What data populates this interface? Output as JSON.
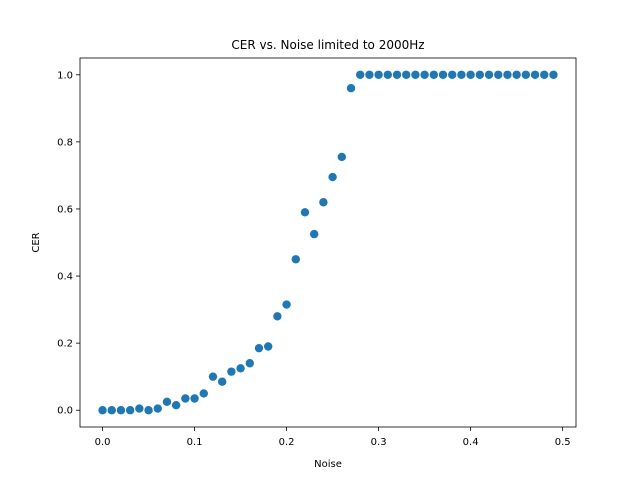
{
  "chart_data": {
    "type": "scatter",
    "title": "CER vs. Noise limited to 2000Hz",
    "xlabel": "Noise",
    "ylabel": "CER",
    "xlim": [
      -0.0245,
      0.5145
    ],
    "ylim": [
      -0.05,
      1.05
    ],
    "xticks": [
      "0.0",
      "0.1",
      "0.2",
      "0.3",
      "0.4",
      "0.5"
    ],
    "yticks": [
      "0.0",
      "0.2",
      "0.4",
      "0.6",
      "0.8",
      "1.0"
    ],
    "grid": false,
    "marker_color": "#1f77b4",
    "series": [
      {
        "x": [
          0.0,
          0.01,
          0.02,
          0.03,
          0.04,
          0.05,
          0.06,
          0.07,
          0.08,
          0.09,
          0.1,
          0.11,
          0.12,
          0.13,
          0.14,
          0.15,
          0.16,
          0.17,
          0.18,
          0.19,
          0.2,
          0.21,
          0.22,
          0.23,
          0.24,
          0.25,
          0.26,
          0.27,
          0.28,
          0.29,
          0.3,
          0.31,
          0.32,
          0.33,
          0.34,
          0.35,
          0.36,
          0.37,
          0.38,
          0.39,
          0.4,
          0.41,
          0.42,
          0.43,
          0.44,
          0.45,
          0.46,
          0.47,
          0.48,
          0.49
        ],
        "y": [
          0.0,
          0.0,
          0.0,
          0.0,
          0.005,
          0.0,
          0.005,
          0.025,
          0.015,
          0.035,
          0.035,
          0.05,
          0.1,
          0.085,
          0.115,
          0.125,
          0.14,
          0.185,
          0.19,
          0.28,
          0.315,
          0.45,
          0.59,
          0.525,
          0.62,
          0.695,
          0.755,
          0.96,
          1.0,
          1.0,
          1.0,
          1.0,
          1.0,
          1.0,
          1.0,
          1.0,
          1.0,
          1.0,
          1.0,
          1.0,
          1.0,
          1.0,
          1.0,
          1.0,
          1.0,
          1.0,
          1.0,
          1.0,
          1.0,
          1.0
        ]
      }
    ]
  }
}
